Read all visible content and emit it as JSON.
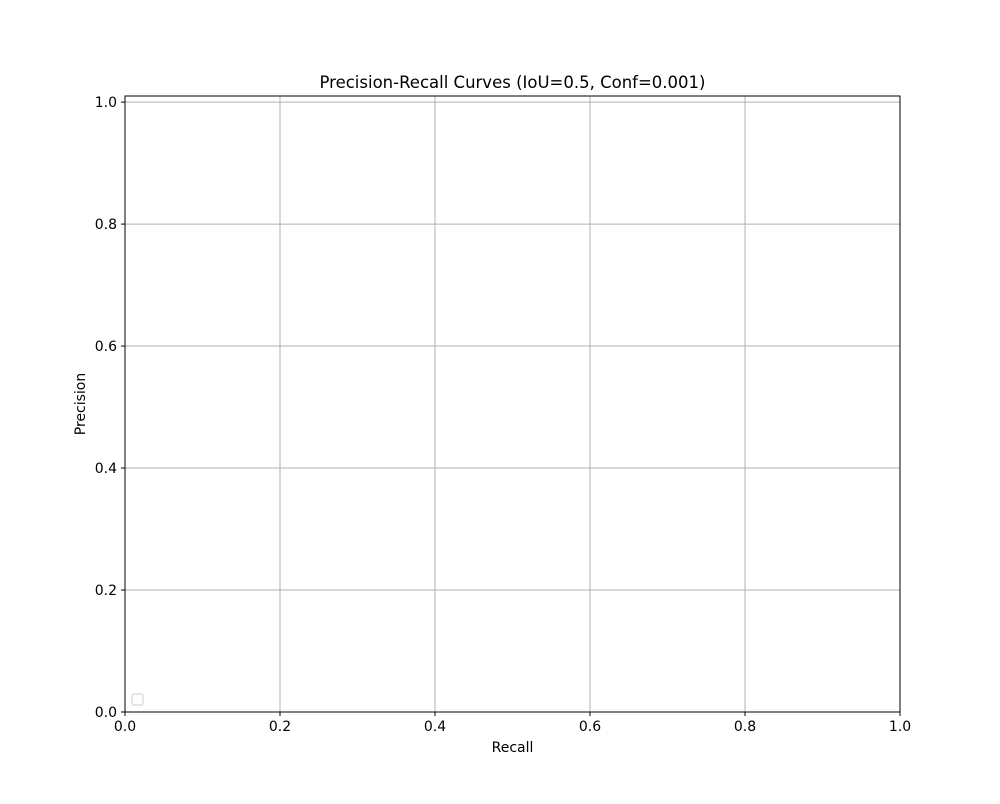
{
  "chart_data": {
    "type": "line",
    "title": "Precision-Recall Curves (IoU=0.5, Conf=0.001)",
    "xlabel": "Recall",
    "ylabel": "Precision",
    "xlim": [
      0.0,
      1.0
    ],
    "ylim": [
      0.0,
      1.01
    ],
    "xticks": [
      0.0,
      0.2,
      0.4,
      0.6,
      0.8,
      1.0
    ],
    "yticks": [
      0.0,
      0.2,
      0.4,
      0.6,
      0.8,
      1.0
    ],
    "xtick_labels": [
      "0.0",
      "0.2",
      "0.4",
      "0.6",
      "0.8",
      "1.0"
    ],
    "ytick_labels": [
      "0.0",
      "0.2",
      "0.4",
      "0.6",
      "0.8",
      "1.0"
    ],
    "grid": true,
    "legend_position": "lower-left",
    "series": [],
    "colors": {
      "grid": "#b0b0b0",
      "axes": "#000000",
      "legend_border": "#cccccc"
    }
  }
}
